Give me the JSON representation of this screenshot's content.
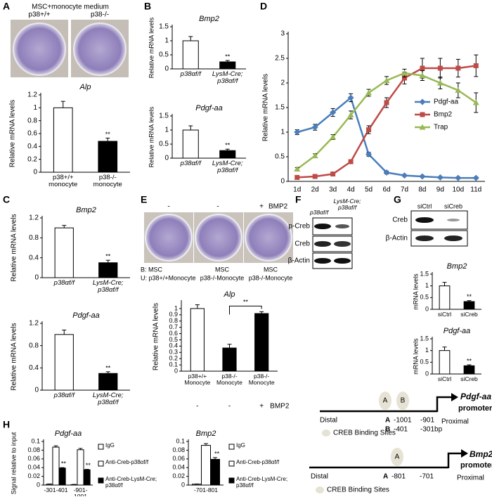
{
  "chart_data": [
    {
      "type": "bar",
      "title": "Alp",
      "ylabel": "Relative mRNA levels",
      "categories": [
        "p38+/+ monocyte",
        "p38-/- monocyte"
      ],
      "values": [
        1.0,
        0.48
      ],
      "errors": [
        0.1,
        0.05
      ],
      "colors": [
        "#ffffff",
        "#000000"
      ],
      "significance": [
        null,
        "**"
      ],
      "ylim": [
        0,
        1.2
      ],
      "yticks": [
        0,
        0.2,
        0.4,
        0.6,
        0.8,
        1,
        1.2
      ]
    },
    {
      "type": "bar",
      "title": "Bmp2",
      "ylabel": "Relative mRNA levels",
      "categories": [
        "p38αf/f",
        "LysM-Cre; p38αf/f"
      ],
      "values": [
        1,
        0.25
      ],
      "errors": [
        0.15,
        0.05
      ],
      "colors": [
        "#ffffff",
        "#000000"
      ],
      "significance": [
        null,
        "**"
      ],
      "ylim": [
        0,
        1.5
      ],
      "yticks": [
        0,
        0.5,
        1,
        1.5
      ]
    },
    {
      "type": "bar",
      "title": "Pdgf-aa",
      "ylabel": "Relative mRNA levels",
      "categories": [
        "p38αf/f",
        "LysM-Cre; p38αf/f"
      ],
      "values": [
        1,
        0.27
      ],
      "errors": [
        0.15,
        0.05
      ],
      "colors": [
        "#ffffff",
        "#000000"
      ],
      "significance": [
        null,
        "**"
      ],
      "ylim": [
        0,
        1.5
      ],
      "yticks": [
        0,
        0.5,
        1,
        1.5
      ]
    },
    {
      "type": "line",
      "ylabel": "Relative mRNA levels",
      "categories": [
        "1d",
        "2d",
        "3d",
        "4d",
        "5d",
        "6d",
        "7d",
        "8d",
        "9d",
        "10d",
        "11d"
      ],
      "legend": "right",
      "series": [
        {
          "name": "Pdgf-aa",
          "color": "#4a7ebb",
          "marker": "diamond",
          "values": [
            1.0,
            1.1,
            1.4,
            1.7,
            0.55,
            0.18,
            0.12,
            0.1,
            0.08,
            0.07,
            0.07
          ],
          "errors": [
            0.05,
            0.06,
            0.08,
            0.08,
            0.04,
            0.03,
            0.02,
            0.02,
            0.02,
            0.02,
            0.02
          ]
        },
        {
          "name": "Bmp2",
          "color": "#be4b48",
          "marker": "square",
          "values": [
            0.08,
            0.1,
            0.15,
            0.4,
            1.05,
            1.6,
            2.1,
            2.3,
            2.3,
            2.3,
            2.35
          ],
          "errors": [
            0.02,
            0.02,
            0.03,
            0.03,
            0.08,
            0.1,
            0.12,
            0.2,
            0.2,
            0.18,
            0.22
          ]
        },
        {
          "name": "Trap",
          "color": "#98b954",
          "marker": "triangle",
          "values": [
            0.25,
            0.52,
            0.9,
            1.35,
            1.8,
            2.05,
            2.2,
            2.15,
            2.0,
            1.85,
            1.6
          ],
          "errors": [
            0.03,
            0.04,
            0.05,
            0.08,
            0.07,
            0.08,
            0.08,
            0.1,
            0.12,
            0.15,
            0.2
          ]
        }
      ],
      "ylim": [
        0,
        3
      ],
      "yticks": [
        0,
        0.5,
        1,
        1.5,
        2,
        2.5,
        3
      ]
    },
    {
      "type": "bar",
      "title": "Bmp2",
      "ylabel": "Relative mRNA levels",
      "categories": [
        "p38αf/f",
        "LysM-Cre; p38αf/f"
      ],
      "values": [
        1,
        0.3
      ],
      "errors": [
        0.05,
        0.05
      ],
      "colors": [
        "#ffffff",
        "#000000"
      ],
      "significance": [
        null,
        "**"
      ],
      "ylim": [
        0,
        1.2
      ],
      "yticks": [
        0,
        0.4,
        0.8,
        1.2
      ]
    },
    {
      "type": "bar",
      "title": "Pdgf-aa",
      "ylabel": "Relative mRNA levels",
      "categories": [
        "p38αf/f",
        "LysM-Cre; p38αf/f"
      ],
      "values": [
        1,
        0.3
      ],
      "errors": [
        0.08,
        0.03
      ],
      "colors": [
        "#ffffff",
        "#000000"
      ],
      "significance": [
        null,
        "**"
      ],
      "ylim": [
        0,
        1.2
      ],
      "yticks": [
        0,
        0.4,
        0.8,
        1.2
      ]
    },
    {
      "type": "bar",
      "title": "Alp",
      "ylabel": "Relative mRNA levels",
      "categories": [
        "p38+/+ Monocyte",
        "p38-/- Monocyte",
        "p38-/- Monocyte"
      ],
      "values": [
        1,
        0.37,
        0.92
      ],
      "errors": [
        0.06,
        0.06,
        0.03
      ],
      "colors": [
        "#ffffff",
        "#000000",
        "#000000"
      ],
      "comparisons": [
        {
          "between": [
            1,
            2
          ],
          "label": "**"
        }
      ],
      "treatments": [
        "-",
        "-",
        "+"
      ],
      "treatment_name": "BMP2",
      "ylim": [
        0,
        1.1
      ],
      "yticks": [
        0,
        0.1,
        0.2,
        0.3,
        0.4,
        0.5,
        0.6,
        0.7,
        0.8,
        0.9,
        1
      ]
    },
    {
      "type": "bar",
      "title": "Bmp2",
      "ylabel": "mRNA levels",
      "categories": [
        "siCtrl",
        "siCreb"
      ],
      "values": [
        1,
        0.33
      ],
      "errors": [
        0.15,
        0.04
      ],
      "colors": [
        "#ffffff",
        "#000000"
      ],
      "significance": [
        null,
        "**"
      ],
      "ylim": [
        0,
        1.5
      ],
      "yticks": [
        0,
        0.5,
        1,
        1.5
      ]
    },
    {
      "type": "bar",
      "title": "Pdgf-aa",
      "ylabel": "mRNA levels",
      "categories": [
        "siCtrl",
        "siCreb"
      ],
      "values": [
        1,
        0.35
      ],
      "errors": [
        0.15,
        0.04
      ],
      "colors": [
        "#ffffff",
        "#000000"
      ],
      "significance": [
        null,
        "**"
      ],
      "ylim": [
        0,
        1.5
      ],
      "yticks": [
        0,
        0.5,
        1,
        1.5
      ]
    },
    {
      "type": "bar",
      "title": "Pdgf-aa",
      "ylabel": "Signal relative to input",
      "categories": [
        "-301-401",
        "-901-1001"
      ],
      "series": [
        {
          "name": "IgG",
          "color": "#ffffff",
          "values": [
            0.002,
            0.001
          ],
          "errors": [
            0.0005,
            0.0005
          ]
        },
        {
          "name": "Anti-Creb-p38αf/f",
          "color": "#ffffff",
          "values": [
            0.087,
            0.081
          ],
          "errors": [
            0.003,
            0.003
          ]
        },
        {
          "name": "Anti-Creb-LysM-Cre; p38αf/f",
          "color": "#000000",
          "values": [
            0.039,
            0.035
          ],
          "errors": [
            0.001,
            0.001
          ],
          "significance": [
            "**",
            "**"
          ]
        }
      ],
      "ylim": [
        0,
        0.1
      ],
      "yticks": [
        0,
        0.02,
        0.04,
        0.06,
        0.08,
        0.1
      ]
    },
    {
      "type": "bar",
      "title": "Bmp2",
      "categories": [
        "-701-801"
      ],
      "series": [
        {
          "name": "IgG",
          "color": "#ffffff",
          "values": [
            0.002
          ],
          "errors": [
            0.0005
          ]
        },
        {
          "name": "Anti-Creb-p38αf/f",
          "color": "#ffffff",
          "values": [
            0.091
          ],
          "errors": [
            0.004
          ]
        },
        {
          "name": "Anti-Creb-LysM-Cre; p38αf/f",
          "color": "#000000",
          "values": [
            0.059
          ],
          "errors": [
            0.004
          ],
          "significance": [
            "**"
          ]
        }
      ],
      "ylim": [
        0,
        0.1
      ],
      "yticks": [
        0,
        0.02,
        0.04,
        0.06,
        0.08,
        0.1
      ]
    }
  ],
  "panels": {
    "A": {
      "label": "A",
      "medium": "MSC+monocyte medium",
      "photo_labels": [
        "p38+/+",
        "p38-/-"
      ]
    },
    "B": {
      "label": "B"
    },
    "C": {
      "label": "C"
    },
    "D": {
      "label": "D"
    },
    "E": {
      "label": "E",
      "photo_treatments": [
        "-",
        "-",
        "+"
      ],
      "treatment_name": "BMP2",
      "photo_captions": [
        [
          "B: MSC",
          "U: p38+/+Monocyte"
        ],
        [
          "MSC",
          "p38-/-Monocyte"
        ],
        [
          "MSC",
          "p38-/-Monocyte"
        ]
      ]
    },
    "F": {
      "label": "F",
      "lanes": [
        "p38αf/f",
        "LysM-Cre; p38αf/f"
      ],
      "bands": [
        "p-Creb",
        "Creb",
        "β-Actin"
      ]
    },
    "G": {
      "label": "G",
      "lanes": [
        "siCtrl",
        "siCreb"
      ],
      "bands": [
        "Creb",
        "β-Actin"
      ]
    },
    "H": {
      "label": "H",
      "diagrams": [
        {
          "gene": "Pdgf-aa",
          "promoter": "promoter",
          "distal": "Distal",
          "proximal": "Proximal",
          "sites": [
            {
              "name": "A",
              "positions": [
                "-1001",
                "-901"
              ]
            },
            {
              "name": "B",
              "positions": [
                "-401",
                "-301bp"
              ]
            }
          ],
          "legend": "CREB Binding Sites"
        },
        {
          "gene": "Bmp2",
          "promoter": "promoter",
          "distal": "Distal",
          "proximal": "Proximal",
          "sites": [
            {
              "name": "A",
              "positions": [
                "-801",
                "-701"
              ]
            }
          ],
          "legend": "CREB Binding Sites"
        }
      ]
    }
  }
}
